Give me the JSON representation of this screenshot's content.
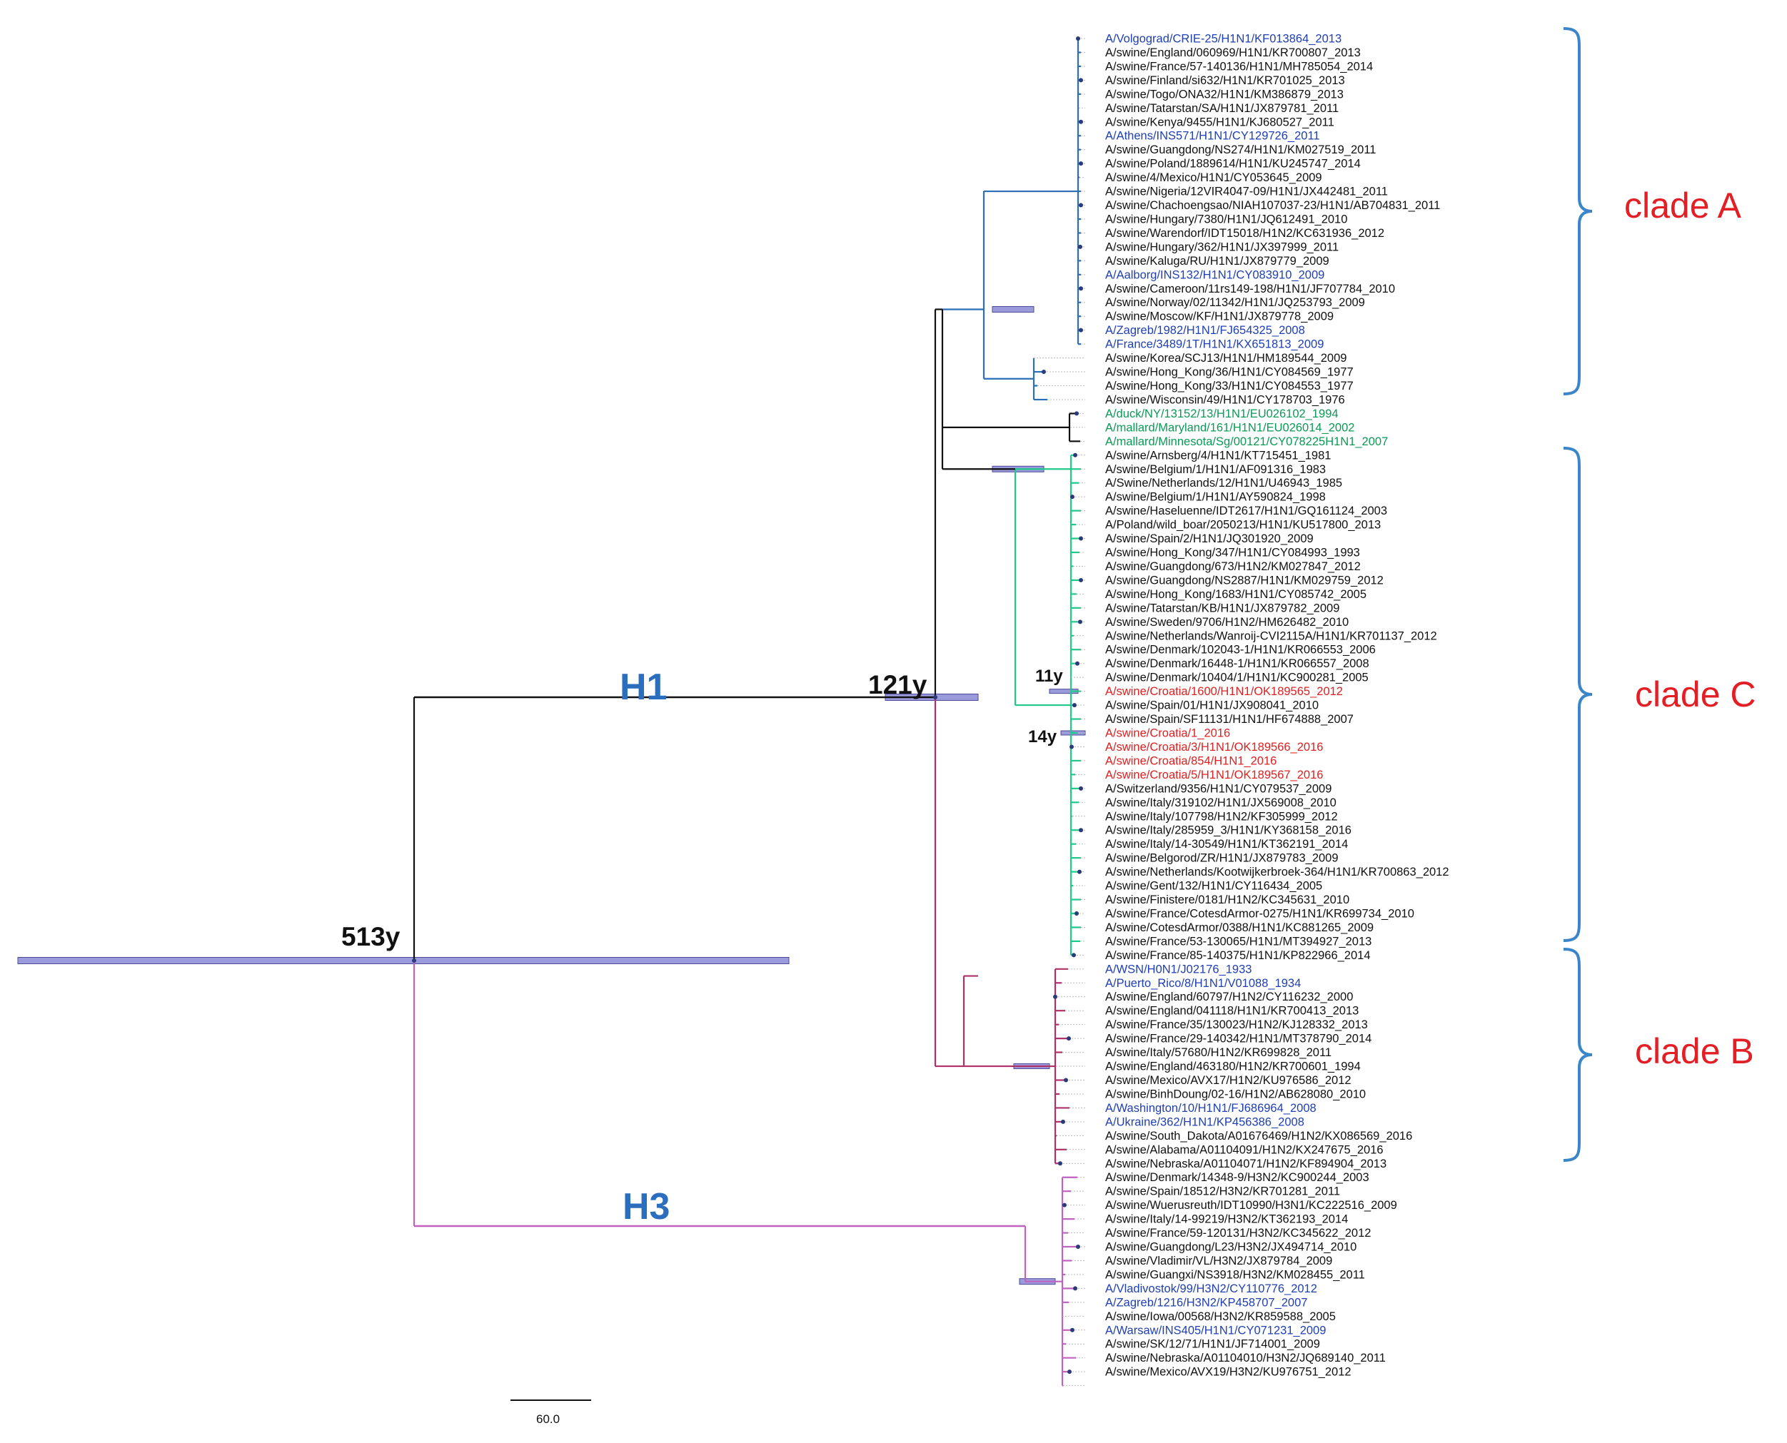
{
  "colors": {
    "default": "#111111",
    "reference_blue": "#1f3fb4",
    "avian_green": "#0a9a55",
    "croatia_red": "#e02020",
    "clade_red": "#e31e24",
    "subtype_blue": "#2a6ebd",
    "bracket_blue": "#3a86c8",
    "hpd_bar": "#7a7ad0",
    "branch_cladeA": "#2a6eb8",
    "branch_avian": "#111111",
    "branch_cladeC": "#1fc98a",
    "branch_cladeB": "#b0306a",
    "branch_H3": "#c063c0",
    "branch_root": "#111111"
  },
  "taxa": [
    {
      "name": "A/Volgograd/CRIE-25/H1N1/KF013864_2013",
      "color": "reference_blue"
    },
    {
      "name": "A/swine/England/060969/H1N1/KR700807_2013",
      "color": "default"
    },
    {
      "name": "A/swine/France/57-140136/H1N1/MH785054_2014",
      "color": "default"
    },
    {
      "name": "A/swine/Finland/si632/H1N1/KR701025_2013",
      "color": "default"
    },
    {
      "name": "A/swine/Togo/ONA32/H1N1/KM386879_2013",
      "color": "default"
    },
    {
      "name": "A/swine/Tatarstan/SA/H1N1/JX879781_2011",
      "color": "default"
    },
    {
      "name": "A/swine/Kenya/9455/H1N1/KJ680527_2011",
      "color": "default"
    },
    {
      "name": "A/Athens/INS571/H1N1/CY129726_2011",
      "color": "reference_blue"
    },
    {
      "name": "A/swine/Guangdong/NS274/H1N1/KM027519_2011",
      "color": "default"
    },
    {
      "name": "A/swine/Poland/1889614/H1N1/KU245747_2014",
      "color": "default"
    },
    {
      "name": "A/swine/4/Mexico/H1N1/CY053645_2009",
      "color": "default"
    },
    {
      "name": "A/swine/Nigeria/12VIR4047-09/H1N1/JX442481_2011",
      "color": "default"
    },
    {
      "name": "A/swine/Chachoengsao/NIAH107037-23/H1N1/AB704831_2011",
      "color": "default"
    },
    {
      "name": "A/swine/Hungary/7380/H1N1/JQ612491_2010",
      "color": "default"
    },
    {
      "name": "A/swine/Warendorf/IDT15018/H1N2/KC631936_2012",
      "color": "default"
    },
    {
      "name": "A/swine/Hungary/362/H1N1/JX397999_2011",
      "color": "default"
    },
    {
      "name": "A/swine/Kaluga/RU/H1N1/JX879779_2009",
      "color": "default"
    },
    {
      "name": "A/Aalborg/INS132/H1N1/CY083910_2009",
      "color": "reference_blue"
    },
    {
      "name": "A/swine/Cameroon/11rs149-198/H1N1/JF707784_2010",
      "color": "default"
    },
    {
      "name": "A/swine/Norway/02/11342/H1N1/JQ253793_2009",
      "color": "default"
    },
    {
      "name": "A/swine/Moscow/KF/H1N1/JX879778_2009",
      "color": "default"
    },
    {
      "name": "A/Zagreb/1982/H1N1/FJ654325_2008",
      "color": "reference_blue"
    },
    {
      "name": "A/France/3489/1T/H1N1/KX651813_2009",
      "color": "reference_blue"
    },
    {
      "name": "A/swine/Korea/SCJ13/H1N1/HM189544_2009",
      "color": "default"
    },
    {
      "name": "A/swine/Hong_Kong/36/H1N1/CY084569_1977",
      "color": "default"
    },
    {
      "name": "A/swine/Hong_Kong/33/H1N1/CY084553_1977",
      "color": "default"
    },
    {
      "name": "A/swine/Wisconsin/49/H1N1/CY178703_1976",
      "color": "default"
    },
    {
      "name": "A/duck/NY/13152/13/H1N1/EU026102_1994",
      "color": "avian_green"
    },
    {
      "name": "A/mallard/Maryland/161/H1N1/EU026014_2002",
      "color": "avian_green"
    },
    {
      "name": "A/mallard/Minnesota/Sg/00121/CY078225H1N1_2007",
      "color": "avian_green"
    },
    {
      "name": "A/swine/Arnsberg/4/H1N1/KT715451_1981",
      "color": "default"
    },
    {
      "name": "A/swine/Belgium/1/H1N1/AF091316_1983",
      "color": "default"
    },
    {
      "name": "A/Swine/Netherlands/12/H1N1/U46943_1985",
      "color": "default"
    },
    {
      "name": "A/swine/Belgium/1/H1N1/AY590824_1998",
      "color": "default"
    },
    {
      "name": "A/swine/Haseluenne/IDT2617/H1N1/GQ161124_2003",
      "color": "default"
    },
    {
      "name": "A/Poland/wild_boar/2050213/H1N1/KU517800_2013",
      "color": "default"
    },
    {
      "name": "A/swine/Spain/2/H1N1/JQ301920_2009",
      "color": "default"
    },
    {
      "name": "A/swine/Hong_Kong/347/H1N1/CY084993_1993",
      "color": "default"
    },
    {
      "name": "A/swine/Guangdong/673/H1N2/KM027847_2012",
      "color": "default"
    },
    {
      "name": "A/swine/Guangdong/NS2887/H1N1/KM029759_2012",
      "color": "default"
    },
    {
      "name": "A/swine/Hong_Kong/1683/H1N1/CY085742_2005",
      "color": "default"
    },
    {
      "name": "A/swine/Tatarstan/KB/H1N1/JX879782_2009",
      "color": "default"
    },
    {
      "name": "A/swine/Sweden/9706/H1N2/HM626482_2010",
      "color": "default"
    },
    {
      "name": "A/swine/Netherlands/Wanroij-CVI2115A/H1N1/KR701137_2012",
      "color": "default"
    },
    {
      "name": "A/swine/Denmark/102043-1/H1N1/KR066553_2006",
      "color": "default"
    },
    {
      "name": "A/swine/Denmark/16448-1/H1N1/KR066557_2008",
      "color": "default"
    },
    {
      "name": "A/swine/Denmark/10404/1/H1N1/KC900281_2005",
      "color": "default"
    },
    {
      "name": "A/swine/Croatia/1600/H1N1/OK189565_2012",
      "color": "croatia_red"
    },
    {
      "name": "A/swine/Spain/01/H1N1/JX908041_2010",
      "color": "default"
    },
    {
      "name": "A/swine/Spain/SF11131/H1N1/HF674888_2007",
      "color": "default"
    },
    {
      "name": "A/swine/Croatia/1_2016",
      "color": "croatia_red"
    },
    {
      "name": "A/swine/Croatia/3/H1N1/OK189566_2016",
      "color": "croatia_red"
    },
    {
      "name": "A/swine/Croatia/854/H1N1_2016",
      "color": "croatia_red"
    },
    {
      "name": "A/swine/Croatia/5/H1N1/OK189567_2016",
      "color": "croatia_red"
    },
    {
      "name": "A/Switzerland/9356/H1N1/CY079537_2009",
      "color": "default"
    },
    {
      "name": "A/swine/Italy/319102/H1N1/JX569008_2010",
      "color": "default"
    },
    {
      "name": "A/swine/Italy/107798/H1N2/KF305999_2012",
      "color": "default"
    },
    {
      "name": "A/swine/Italy/285959_3/H1N1/KY368158_2016",
      "color": "default"
    },
    {
      "name": "A/swine/Italy/14-30549/H1N1/KT362191_2014",
      "color": "default"
    },
    {
      "name": "A/swine/Belgorod/ZR/H1N1/JX879783_2009",
      "color": "default"
    },
    {
      "name": "A/swine/Netherlands/Kootwijkerbroek-364/H1N1/KR700863_2012",
      "color": "default"
    },
    {
      "name": "A/swine/Gent/132/H1N1/CY116434_2005",
      "color": "default"
    },
    {
      "name": "A/swine/Finistere/0181/H1N2/KC345631_2010",
      "color": "default"
    },
    {
      "name": "A/swine/France/CotesdArmor-0275/H1N1/KR699734_2010",
      "color": "default"
    },
    {
      "name": "A/swine/CotesdArmor/0388/H1N1/KC881265_2009",
      "color": "default"
    },
    {
      "name": "A/swine/France/53-130065/H1N1/MT394927_2013",
      "color": "default"
    },
    {
      "name": "A/swine/France/85-140375/H1N1/KP822966_2014",
      "color": "default"
    },
    {
      "name": "A/WSN/H0N1/J02176_1933",
      "color": "reference_blue"
    },
    {
      "name": "A/Puerto_Rico/8/H1N1/V01088_1934",
      "color": "reference_blue"
    },
    {
      "name": "A/swine/England/60797/H1N2/CY116232_2000",
      "color": "default"
    },
    {
      "name": "A/swine/England/041118/H1N1/KR700413_2013",
      "color": "default"
    },
    {
      "name": "A/swine/France/35/130023/H1N2/KJ128332_2013",
      "color": "default"
    },
    {
      "name": "A/swine/France/29-140342/H1N1/MT378790_2014",
      "color": "default"
    },
    {
      "name": "A/swine/Italy/57680/H1N2/KR699828_2011",
      "color": "default"
    },
    {
      "name": "A/swine/England/463180/H1N2/KR700601_1994",
      "color": "default"
    },
    {
      "name": "A/swine/Mexico/AVX17/H1N2/KU976586_2012",
      "color": "default"
    },
    {
      "name": "A/swine/BinhDoung/02-16/H1N2/AB628080_2010",
      "color": "default"
    },
    {
      "name": "A/Washington/10/H1N1/FJ686964_2008",
      "color": "reference_blue"
    },
    {
      "name": "A/Ukraine/362/H1N1/KP456386_2008",
      "color": "reference_blue"
    },
    {
      "name": "A/swine/South_Dakota/A01676469/H1N2/KX086569_2016",
      "color": "default"
    },
    {
      "name": "A/swine/Alabama/A01104091/H1N2/KX247675_2016",
      "color": "default"
    },
    {
      "name": "A/swine/Nebraska/A01104071/H1N2/KF894904_2013",
      "color": "default"
    },
    {
      "name": "A/swine/Denmark/14348-9/H3N2/KC900244_2003",
      "color": "default"
    },
    {
      "name": "A/swine/Spain/18512/H3N2/KR701281_2011",
      "color": "default"
    },
    {
      "name": "A/swine/Wuerusreuth/IDT10990/H3N1/KC222516_2009",
      "color": "default"
    },
    {
      "name": "A/swine/Italy/14-99219/H3N2/KT362193_2014",
      "color": "default"
    },
    {
      "name": "A/swine/France/59-120131/H3N2/KC345622_2012",
      "color": "default"
    },
    {
      "name": "A/swine/Guangdong/L23/H3N2/JX494714_2010",
      "color": "default"
    },
    {
      "name": "A/swine/Vladimir/VL/H3N2/JX879784_2009",
      "color": "default"
    },
    {
      "name": "A/swine/Guangxi/NS3918/H3N2/KM028455_2011",
      "color": "default"
    },
    {
      "name": "A/Vladivostok/99/H3N2/CY110776_2012",
      "color": "reference_blue"
    },
    {
      "name": "A/Zagreb/1216/H3N2/KP458707_2007",
      "color": "reference_blue"
    },
    {
      "name": "A/swine/Iowa/00568/H3N2/KR859588_2005",
      "color": "default"
    },
    {
      "name": "A/Warsaw/INS405/H1N1/CY071231_2009",
      "color": "reference_blue"
    },
    {
      "name": "A/swine/SK/12/71/H1N1/JF714001_2009",
      "color": "default"
    },
    {
      "name": "A/swine/Nebraska/A01104010/H3N2/JQ689140_2011",
      "color": "default"
    },
    {
      "name": "A/swine/Mexico/AVX19/H3N2/KU976751_2012",
      "color": "default"
    }
  ],
  "node_ages": {
    "root": "513y",
    "h1": "121y",
    "croatia_2012": "11y",
    "croatia_2016": "14y"
  },
  "subtype_labels": {
    "h1": "H1",
    "h3": "H3"
  },
  "clade_labels": {
    "a": "clade A",
    "c": "clade C",
    "b": "clade B"
  },
  "scale_bar": {
    "label": "60.0",
    "value": 60.0
  }
}
